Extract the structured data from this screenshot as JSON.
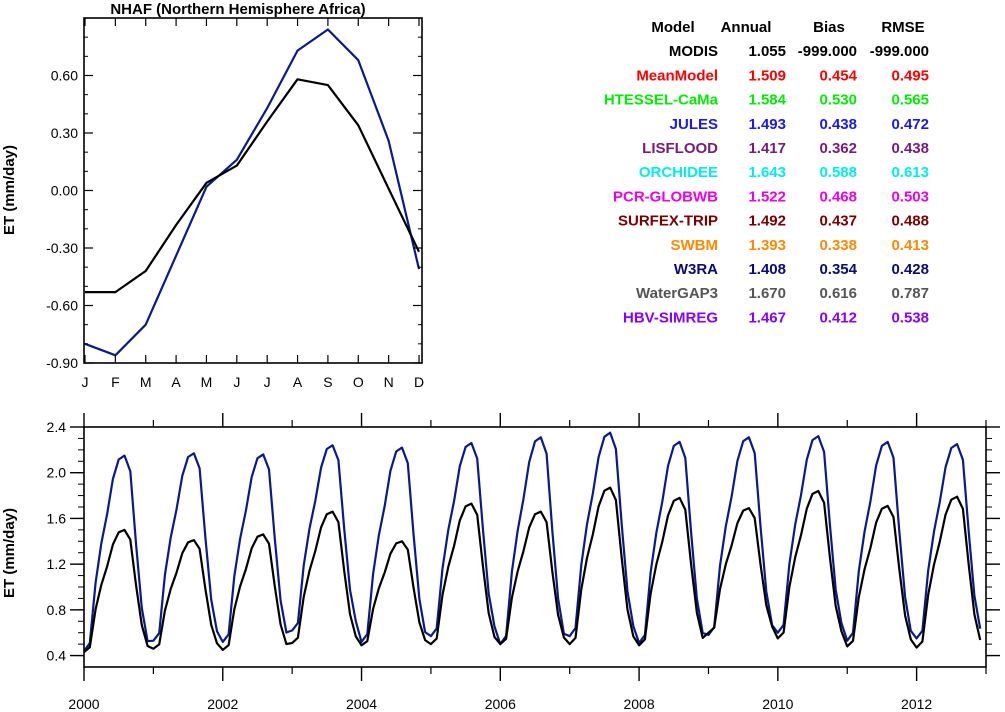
{
  "chart_data": [
    {
      "type": "line",
      "title": "NHAF (Northern Hemisphere Africa)",
      "xlabel": "",
      "ylabel": "ET (mm/day)",
      "categories": [
        "J",
        "F",
        "M",
        "A",
        "M",
        "J",
        "J",
        "A",
        "S",
        "O",
        "N",
        "D"
      ],
      "ylim": [
        -0.9,
        0.9
      ],
      "yticks": [
        -0.9,
        -0.6,
        -0.3,
        0.0,
        0.3,
        0.6
      ],
      "ytick_labels": [
        "-0.90",
        "-0.60",
        "-0.30",
        "0.00",
        "0.30",
        "0.60"
      ],
      "series": [
        {
          "color": "#0a1a8c",
          "values": [
            -0.8,
            -0.86,
            -0.7,
            -0.34,
            0.02,
            0.16,
            0.43,
            0.73,
            0.84,
            0.68,
            0.26,
            -0.41
          ]
        },
        {
          "color": "#000000",
          "values": [
            -0.53,
            -0.53,
            -0.42,
            -0.18,
            0.04,
            0.13,
            0.36,
            0.58,
            0.55,
            0.34,
            0.01,
            -0.32
          ]
        }
      ]
    },
    {
      "type": "line",
      "title": "",
      "xlabel": "",
      "ylabel": "ET (mm/day)",
      "xlim": [
        2000,
        2013
      ],
      "xticks": [
        2000,
        2002,
        2004,
        2006,
        2008,
        2010,
        2012
      ],
      "ylim": [
        0.3,
        2.4
      ],
      "yticks": [
        0.4,
        0.8,
        1.2,
        1.6,
        2.0,
        2.4
      ],
      "ytick_labels": [
        "0.4",
        "0.8",
        "1.2",
        "1.6",
        "2.0",
        "2.4"
      ],
      "series": [
        {
          "color": "#0a1a8c",
          "peaks": [
            2.15,
            2.17,
            2.16,
            2.24,
            2.22,
            2.26,
            2.31,
            2.35,
            2.27,
            2.31,
            2.32,
            2.27,
            2.25
          ],
          "troughs": [
            0.44,
            0.53,
            0.52,
            0.62,
            0.52,
            0.57,
            0.5,
            0.57,
            0.51,
            0.58,
            0.6,
            0.53,
            0.55
          ]
        },
        {
          "color": "#000000",
          "peaks": [
            1.5,
            1.41,
            1.46,
            1.66,
            1.4,
            1.73,
            1.66,
            1.87,
            1.78,
            1.69,
            1.84,
            1.71,
            1.79
          ],
          "troughs": [
            0.43,
            0.46,
            0.45,
            0.51,
            0.49,
            0.5,
            0.5,
            0.5,
            0.49,
            0.6,
            0.55,
            0.48,
            0.47
          ]
        }
      ]
    }
  ],
  "stats_table": {
    "headers": [
      "Model",
      "Annual",
      "Bias",
      "RMSE"
    ],
    "rows": [
      {
        "name": "MODIS",
        "annual": "1.055",
        "bias": "-999.000",
        "rmse": "-999.000",
        "color": "#000000"
      },
      {
        "name": "MeanModel",
        "annual": "1.509",
        "bias": "0.454",
        "rmse": "0.495",
        "color": "#ff0000"
      },
      {
        "name": "HTESSEL-CaMa",
        "annual": "1.584",
        "bias": "0.530",
        "rmse": "0.565",
        "color": "#00ee00"
      },
      {
        "name": "JULES",
        "annual": "1.493",
        "bias": "0.438",
        "rmse": "0.472",
        "color": "#1a1aee"
      },
      {
        "name": "LISFLOOD",
        "annual": "1.417",
        "bias": "0.362",
        "rmse": "0.438",
        "color": "#7a1a7a"
      },
      {
        "name": "ORCHIDEE",
        "annual": "1.643",
        "bias": "0.588",
        "rmse": "0.613",
        "color": "#00eeee"
      },
      {
        "name": "PCR-GLOBWB",
        "annual": "1.522",
        "bias": "0.468",
        "rmse": "0.503",
        "color": "#ee00ee"
      },
      {
        "name": "SURFEX-TRIP",
        "annual": "1.492",
        "bias": "0.437",
        "rmse": "0.488",
        "color": "#7a0000"
      },
      {
        "name": "SWBM",
        "annual": "1.393",
        "bias": "0.338",
        "rmse": "0.413",
        "color": "#ff8800"
      },
      {
        "name": "W3RA",
        "annual": "1.408",
        "bias": "0.354",
        "rmse": "0.428",
        "color": "#0a0a7a"
      },
      {
        "name": "WaterGAP3",
        "annual": "1.670",
        "bias": "0.616",
        "rmse": "0.787",
        "color": "#555555"
      },
      {
        "name": "HBV-SIMREG",
        "annual": "1.467",
        "bias": "0.412",
        "rmse": "0.538",
        "color": "#8800ff"
      }
    ]
  }
}
